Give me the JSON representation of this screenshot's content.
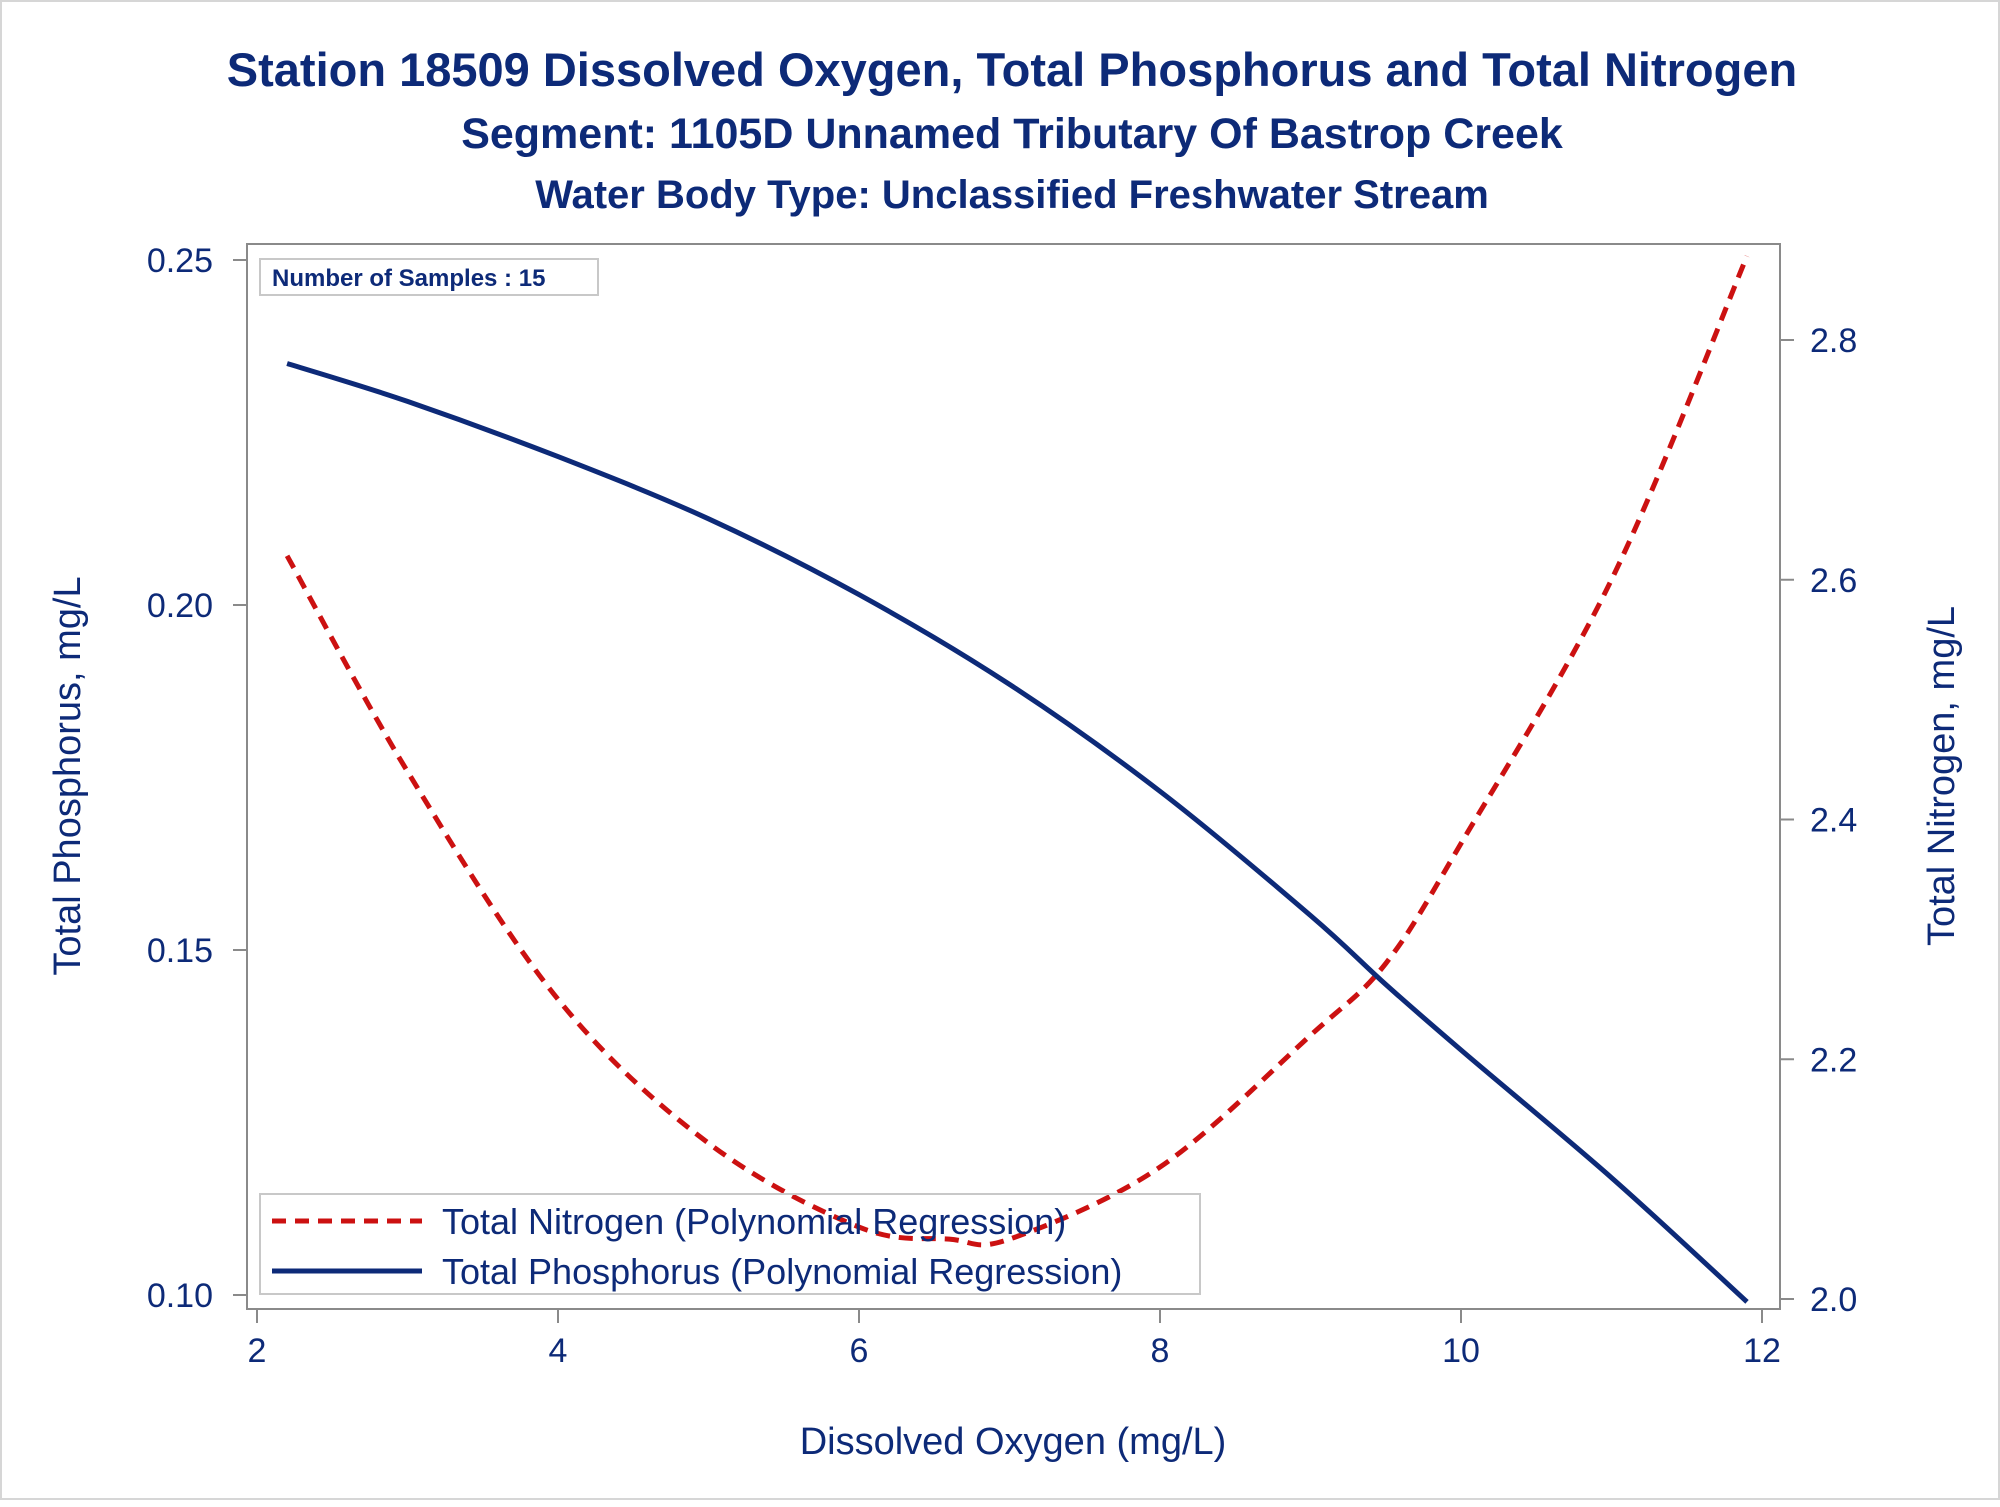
{
  "titles": {
    "line1": "Station 18509  Dissolved Oxygen, Total Phosphorus and Total Nitrogen",
    "line2": "Segment: 1105D  Unnamed Tributary Of Bastrop Creek",
    "line3": "Water Body Type: Unclassified Freshwater Stream"
  },
  "inset": {
    "text": "Number of Samples : 15"
  },
  "colors": {
    "title": "#0d2a78",
    "phosphorus": "#0d2a78",
    "nitrogen": "#cc1111",
    "axis": "#8a8a8a"
  },
  "chart_data": {
    "type": "line",
    "xlabel": "Dissolved Oxygen (mg/L)",
    "ylabel_left": "Total Phosphorus, mg/L",
    "ylabel_right": "Total Nitrogen, mg/L",
    "xlim": [
      2,
      12
    ],
    "ylim_left": [
      0.1,
      0.25
    ],
    "ylim_right": [
      2.0,
      2.8
    ],
    "x_ticks": [
      2,
      4,
      6,
      8,
      10,
      12
    ],
    "x_tick_labels": [
      "2",
      "4",
      "6",
      "8",
      "10",
      "12"
    ],
    "y_left_ticks": [
      0.1,
      0.15,
      0.2,
      0.25
    ],
    "y_left_tick_labels": [
      "0.10",
      "0.15",
      "0.20",
      "0.25"
    ],
    "y_right_ticks": [
      2.0,
      2.2,
      2.4,
      2.6,
      2.8
    ],
    "y_right_tick_labels": [
      "2.0",
      "2.2",
      "2.4",
      "2.6",
      "2.8"
    ],
    "grid": false,
    "legend_position": "bottom-left inside",
    "series": [
      {
        "name": "Total Nitrogen (Polynomial Regression)",
        "axis": "right",
        "style": "dashed",
        "x": [
          2.2,
          3.0,
          4.0,
          5.0,
          6.0,
          6.6,
          7.0,
          8.0,
          9.0,
          9.5,
          10.0,
          11.0,
          11.9
        ],
        "y": [
          2.62,
          2.44,
          2.25,
          2.13,
          2.06,
          2.05,
          2.05,
          2.11,
          2.22,
          2.28,
          2.38,
          2.6,
          2.87
        ]
      },
      {
        "name": "Total Phosphorus (Polynomial Regression)",
        "axis": "left",
        "style": "solid",
        "x": [
          2.2,
          3.0,
          4.0,
          5.0,
          6.0,
          7.0,
          8.0,
          9.0,
          9.5,
          10.0,
          11.0,
          11.9
        ],
        "y": [
          0.235,
          0.2295,
          0.2215,
          0.2125,
          0.2015,
          0.1885,
          0.173,
          0.155,
          0.145,
          0.1355,
          0.117,
          0.099
        ]
      }
    ]
  }
}
